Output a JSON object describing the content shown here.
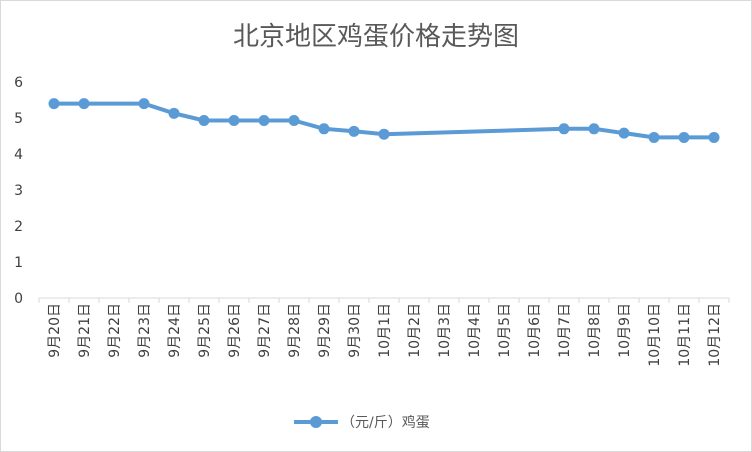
{
  "chart_data": {
    "type": "line",
    "title": "北京地区鸡蛋价格走势图",
    "xlabel": "",
    "ylabel": "",
    "ylim": [
      0,
      6
    ],
    "yticks": [
      0,
      1,
      2,
      3,
      4,
      5,
      6
    ],
    "grid": false,
    "legend_position": "bottom",
    "categories": [
      "9月20日",
      "9月21日",
      "9月22日",
      "9月23日",
      "9月24日",
      "9月25日",
      "9月26日",
      "9月27日",
      "9月28日",
      "9月29日",
      "9月30日",
      "10月1日",
      "10月2日",
      "10月3日",
      "10月4日",
      "10月5日",
      "10月6日",
      "10月7日",
      "10月8日",
      "10月9日",
      "10月10日",
      "10月11日",
      "10月12日"
    ],
    "series": [
      {
        "name": "（元/斤）鸡蛋",
        "color": "#5b9bd5",
        "values": [
          5.4,
          5.4,
          null,
          5.4,
          5.13,
          4.93,
          4.93,
          4.93,
          4.93,
          4.7,
          4.63,
          4.55,
          null,
          null,
          null,
          null,
          null,
          4.7,
          4.7,
          4.58,
          4.46,
          4.46,
          4.46
        ]
      }
    ]
  }
}
